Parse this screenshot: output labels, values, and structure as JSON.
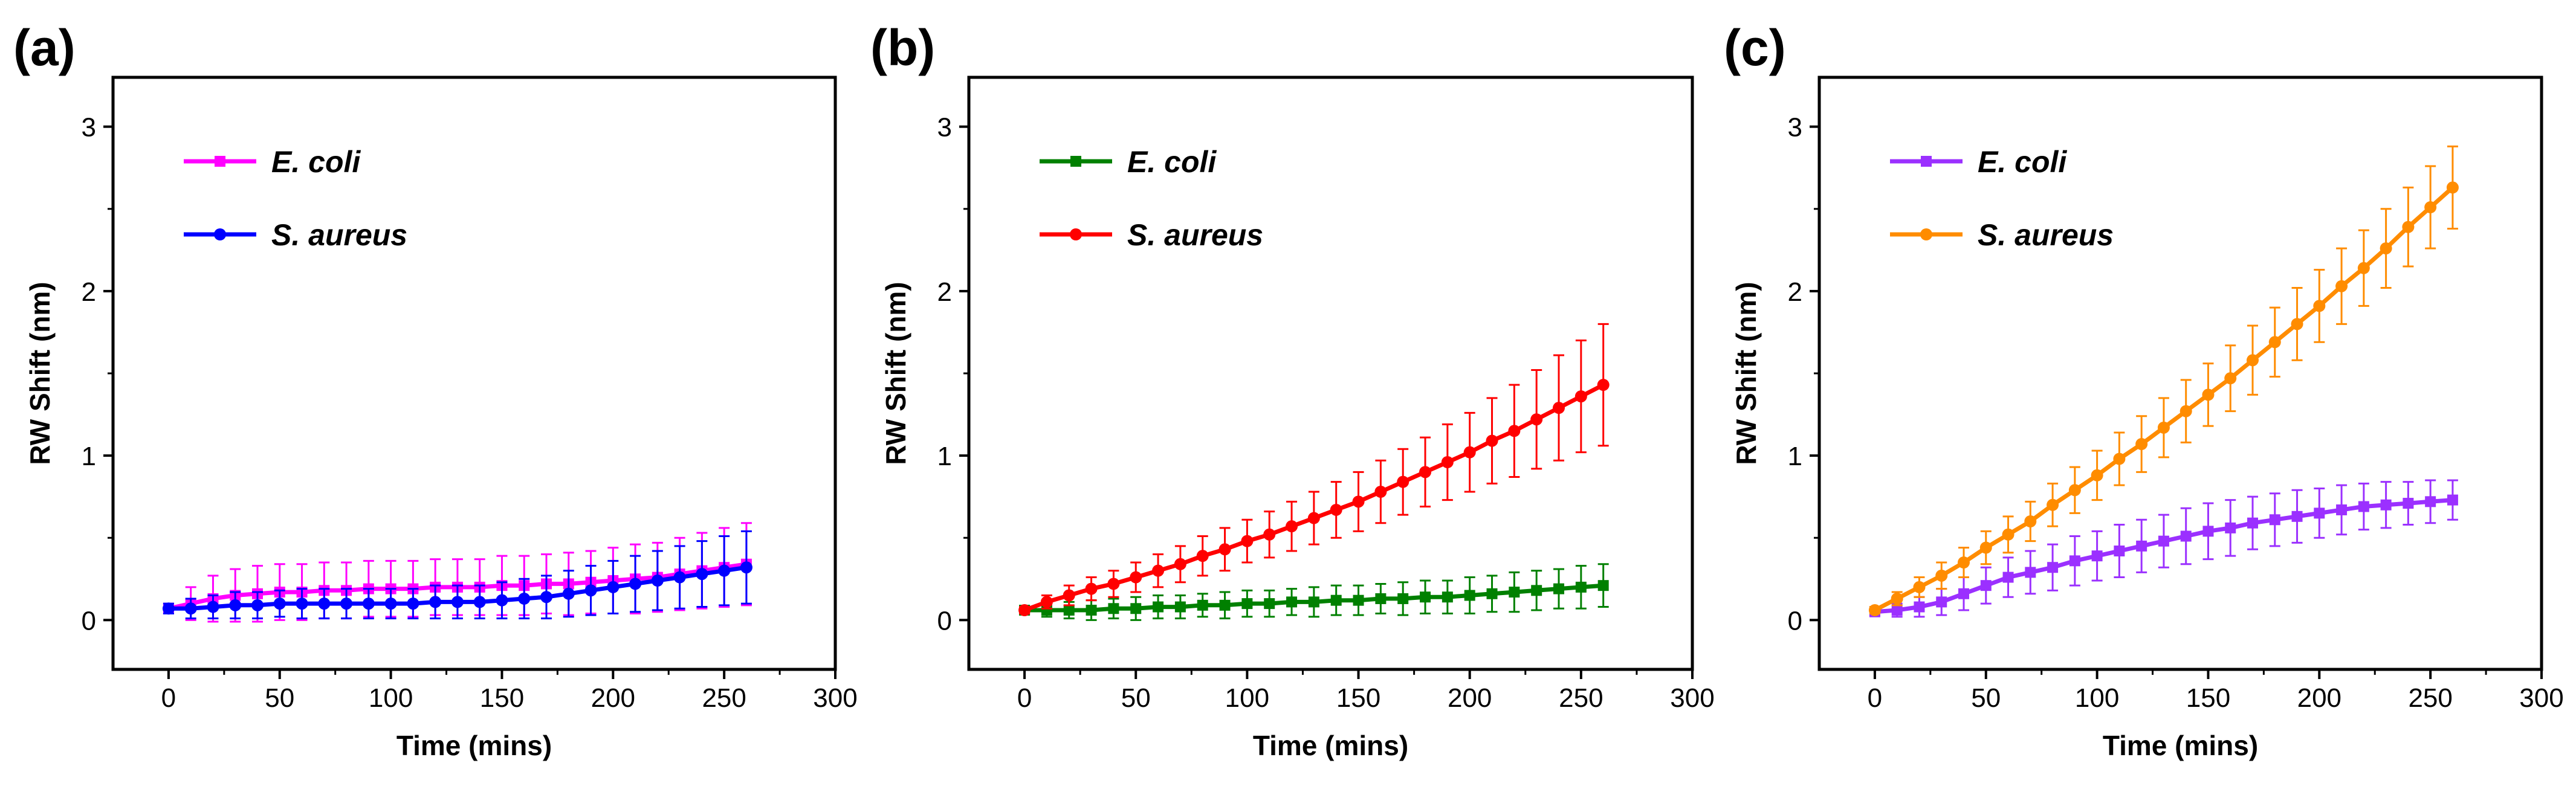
{
  "chart_data": [
    {
      "panel_label": "(a)",
      "type": "line",
      "xlabel": "Time (mins)",
      "ylabel": "RW Shift (nm)",
      "xlim": [
        -25,
        300
      ],
      "ylim": [
        -0.3,
        3.3
      ],
      "xticks": [
        "0",
        "50",
        "100",
        "150",
        "200",
        "250",
        "300"
      ],
      "yticks": [
        "0",
        "1",
        "2",
        "3"
      ],
      "legend_position": "top-left",
      "x": [
        0,
        10,
        20,
        30,
        40,
        50,
        60,
        70,
        80,
        90,
        100,
        110,
        120,
        130,
        140,
        150,
        160,
        170,
        180,
        190,
        200,
        210,
        220,
        230,
        240,
        250,
        260
      ],
      "series": [
        {
          "name": "E. coli",
          "color": "#FF00FF",
          "marker": "square",
          "values": [
            0.07,
            0.1,
            0.13,
            0.15,
            0.16,
            0.17,
            0.17,
            0.18,
            0.18,
            0.19,
            0.19,
            0.19,
            0.2,
            0.2,
            0.2,
            0.21,
            0.21,
            0.22,
            0.22,
            0.23,
            0.24,
            0.25,
            0.26,
            0.28,
            0.3,
            0.32,
            0.34
          ],
          "errors": [
            0.03,
            0.1,
            0.14,
            0.16,
            0.17,
            0.17,
            0.17,
            0.17,
            0.17,
            0.17,
            0.17,
            0.17,
            0.17,
            0.17,
            0.17,
            0.18,
            0.18,
            0.18,
            0.19,
            0.19,
            0.2,
            0.21,
            0.21,
            0.22,
            0.23,
            0.24,
            0.25
          ]
        },
        {
          "name": "S. aureus",
          "color": "#0000FF",
          "marker": "circle",
          "values": [
            0.07,
            0.07,
            0.08,
            0.09,
            0.09,
            0.1,
            0.1,
            0.1,
            0.1,
            0.1,
            0.1,
            0.1,
            0.11,
            0.11,
            0.11,
            0.12,
            0.13,
            0.14,
            0.16,
            0.18,
            0.2,
            0.22,
            0.24,
            0.26,
            0.28,
            0.3,
            0.32
          ],
          "errors": [
            0.03,
            0.06,
            0.07,
            0.08,
            0.08,
            0.08,
            0.09,
            0.09,
            0.09,
            0.09,
            0.09,
            0.09,
            0.1,
            0.1,
            0.1,
            0.11,
            0.12,
            0.13,
            0.14,
            0.15,
            0.16,
            0.17,
            0.18,
            0.19,
            0.2,
            0.21,
            0.22
          ]
        }
      ]
    },
    {
      "panel_label": "(b)",
      "type": "line",
      "xlabel": "Time (mins)",
      "ylabel": "RW Shift (nm)",
      "xlim": [
        -25,
        300
      ],
      "ylim": [
        -0.3,
        3.3
      ],
      "xticks": [
        "0",
        "50",
        "100",
        "150",
        "200",
        "250",
        "300"
      ],
      "yticks": [
        "0",
        "1",
        "2",
        "3"
      ],
      "legend_position": "top-left",
      "x": [
        0,
        10,
        20,
        30,
        40,
        50,
        60,
        70,
        80,
        90,
        100,
        110,
        120,
        130,
        140,
        150,
        160,
        170,
        180,
        190,
        200,
        210,
        220,
        230,
        240,
        250,
        260
      ],
      "series": [
        {
          "name": "E. coli",
          "color": "#008000",
          "marker": "square",
          "values": [
            0.06,
            0.06,
            0.06,
            0.06,
            0.07,
            0.07,
            0.08,
            0.08,
            0.09,
            0.09,
            0.1,
            0.1,
            0.11,
            0.11,
            0.12,
            0.12,
            0.13,
            0.13,
            0.14,
            0.14,
            0.15,
            0.16,
            0.17,
            0.18,
            0.19,
            0.2,
            0.21
          ],
          "errors": [
            0.02,
            0.04,
            0.05,
            0.06,
            0.06,
            0.07,
            0.07,
            0.07,
            0.07,
            0.08,
            0.08,
            0.08,
            0.08,
            0.09,
            0.09,
            0.09,
            0.09,
            0.1,
            0.1,
            0.1,
            0.11,
            0.11,
            0.12,
            0.12,
            0.12,
            0.13,
            0.13
          ]
        },
        {
          "name": "S. aureus",
          "color": "#FF0000",
          "marker": "circle",
          "values": [
            0.06,
            0.11,
            0.15,
            0.19,
            0.22,
            0.26,
            0.3,
            0.34,
            0.39,
            0.43,
            0.48,
            0.52,
            0.57,
            0.62,
            0.67,
            0.72,
            0.78,
            0.84,
            0.9,
            0.96,
            1.02,
            1.09,
            1.15,
            1.22,
            1.29,
            1.36,
            1.43
          ],
          "errors": [
            0.02,
            0.04,
            0.06,
            0.07,
            0.08,
            0.09,
            0.1,
            0.11,
            0.12,
            0.13,
            0.13,
            0.14,
            0.15,
            0.16,
            0.17,
            0.18,
            0.19,
            0.2,
            0.21,
            0.23,
            0.24,
            0.26,
            0.28,
            0.3,
            0.32,
            0.34,
            0.37
          ]
        }
      ]
    },
    {
      "panel_label": "(c)",
      "type": "line",
      "xlabel": "Time (mins)",
      "ylabel": "RW Shift (nm)",
      "xlim": [
        -25,
        300
      ],
      "ylim": [
        -0.3,
        3.3
      ],
      "xticks": [
        "0",
        "50",
        "100",
        "150",
        "200",
        "250",
        "300"
      ],
      "yticks": [
        "0",
        "1",
        "2",
        "3"
      ],
      "legend_position": "top-left",
      "x": [
        0,
        10,
        20,
        30,
        40,
        50,
        60,
        70,
        80,
        90,
        100,
        110,
        120,
        130,
        140,
        150,
        160,
        170,
        180,
        190,
        200,
        210,
        220,
        230,
        240,
        250,
        260
      ],
      "series": [
        {
          "name": "E. coli",
          "color": "#9B30FF",
          "marker": "square",
          "values": [
            0.05,
            0.06,
            0.08,
            0.11,
            0.16,
            0.21,
            0.26,
            0.29,
            0.32,
            0.36,
            0.39,
            0.42,
            0.45,
            0.48,
            0.51,
            0.54,
            0.56,
            0.59,
            0.61,
            0.63,
            0.65,
            0.67,
            0.69,
            0.7,
            0.71,
            0.72,
            0.73
          ],
          "errors": [
            0.02,
            0.04,
            0.06,
            0.08,
            0.1,
            0.11,
            0.12,
            0.13,
            0.14,
            0.15,
            0.15,
            0.16,
            0.16,
            0.16,
            0.17,
            0.17,
            0.17,
            0.16,
            0.16,
            0.16,
            0.15,
            0.15,
            0.14,
            0.14,
            0.13,
            0.13,
            0.12
          ]
        },
        {
          "name": "S. aureus",
          "color": "#FF8C00",
          "marker": "circle",
          "values": [
            0.06,
            0.13,
            0.2,
            0.27,
            0.35,
            0.44,
            0.52,
            0.6,
            0.7,
            0.79,
            0.88,
            0.98,
            1.07,
            1.17,
            1.27,
            1.37,
            1.47,
            1.58,
            1.69,
            1.8,
            1.91,
            2.03,
            2.14,
            2.26,
            2.39,
            2.51,
            2.63
          ],
          "errors": [
            0.02,
            0.04,
            0.06,
            0.08,
            0.09,
            0.1,
            0.11,
            0.12,
            0.13,
            0.14,
            0.15,
            0.16,
            0.17,
            0.18,
            0.19,
            0.19,
            0.2,
            0.21,
            0.21,
            0.22,
            0.22,
            0.23,
            0.23,
            0.24,
            0.24,
            0.25,
            0.25
          ]
        }
      ]
    }
  ]
}
